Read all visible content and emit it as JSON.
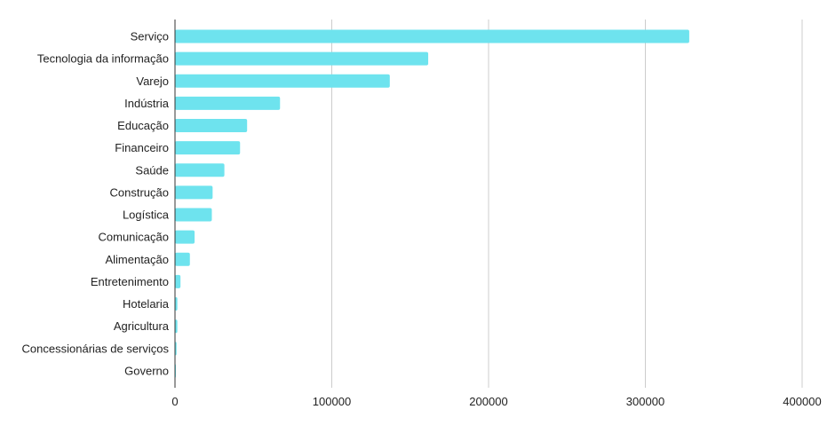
{
  "chart_data": {
    "type": "bar",
    "orientation": "horizontal",
    "title": "",
    "xlabel": "",
    "ylabel": "",
    "categories": [
      "Serviço",
      "Tecnologia da informação",
      "Varejo",
      "Indústria",
      "Educação",
      "Financeiro",
      "Saúde",
      "Construção",
      "Logística",
      "Comunicação",
      "Alimentação",
      "Entretenimento",
      "Hotelaria",
      "Agricultura",
      "Concessionárias de serviços",
      "Governo"
    ],
    "values": [
      328000,
      161500,
      137000,
      67000,
      46000,
      41500,
      31500,
      24000,
      23500,
      12500,
      9500,
      3500,
      1500,
      1500,
      1000,
      500
    ],
    "xlim": [
      0,
      400000
    ],
    "xticks": [
      "0",
      "100000",
      "200000",
      "300000",
      "400000"
    ],
    "grid": true,
    "legend": "none",
    "bar_color": "#6ee3ee",
    "grid_color": "#cccccc",
    "axis_color": "#333333"
  }
}
